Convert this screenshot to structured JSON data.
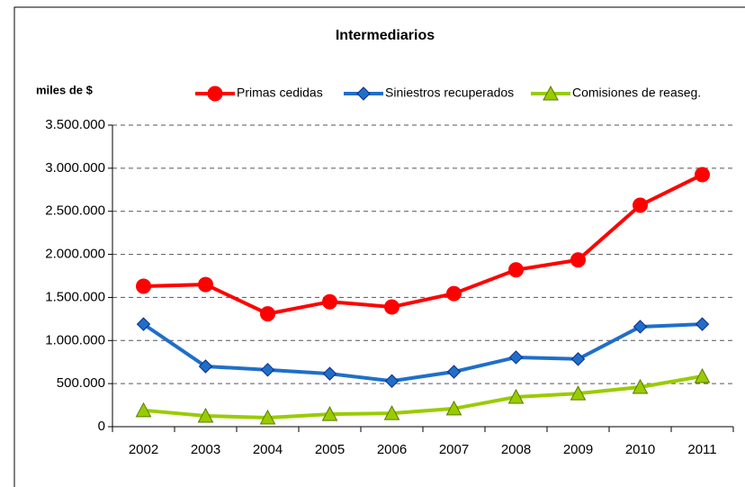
{
  "chart_data": {
    "type": "line",
    "title": "Intermediarios",
    "y_label": "miles de $",
    "categories": [
      "2002",
      "2003",
      "2004",
      "2005",
      "2006",
      "2007",
      "2008",
      "2009",
      "2010",
      "2011"
    ],
    "series": [
      {
        "name": "Primas cedidas",
        "color": "#ff0000",
        "marker": "circle",
        "values": [
          1630000,
          1650000,
          1310000,
          1450000,
          1390000,
          1545000,
          1820000,
          1935000,
          2570000,
          2925000
        ]
      },
      {
        "name": "Siniestros recuperados",
        "color": "#1f6fc9",
        "marker": "diamond",
        "values": [
          1190000,
          700000,
          660000,
          615000,
          530000,
          637000,
          805000,
          785000,
          1160000,
          1190000
        ]
      },
      {
        "name": "Comisiones de reaseg.",
        "color": "#99cc00",
        "marker": "triangle",
        "values": [
          190000,
          125000,
          105000,
          145000,
          155000,
          210000,
          345000,
          385000,
          460000,
          585000
        ]
      }
    ],
    "ylim": [
      0,
      3500000
    ],
    "yticks": [
      0,
      {
        "value": 500000,
        "label": "500.000"
      },
      {
        "value": 1000000,
        "label": "1.000.000"
      },
      {
        "value": 1500000,
        "label": "1.500.000"
      },
      {
        "value": 2000000,
        "label": "2.000.000"
      },
      {
        "value": 2500000,
        "label": "2.500.000"
      },
      {
        "value": 3000000,
        "label": "3.000.000"
      },
      {
        "value": 3500000,
        "label": "3.500.000"
      }
    ],
    "grid": true,
    "legend": "top"
  }
}
